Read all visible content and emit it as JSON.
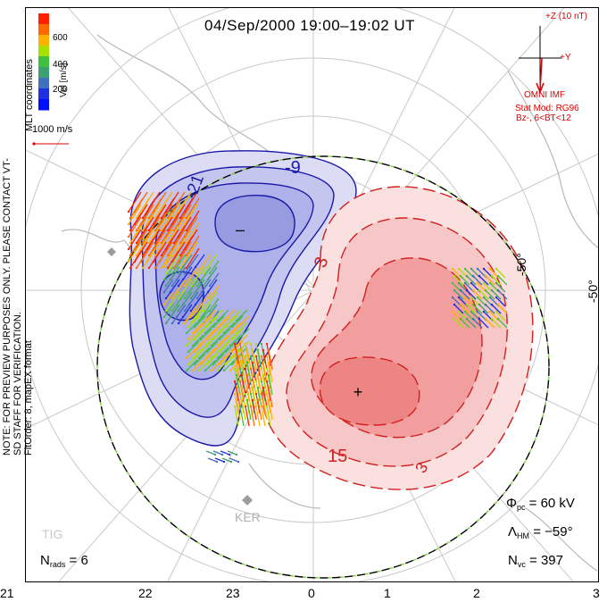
{
  "title": "04/Sep/2000 19:00–19:02 UT",
  "side_note_1": "NOTE: FOR PREVIEW PURPOSES ONLY. PLEASE CONTACT VT-SD STAFF FOR VERIFICATION.",
  "side_note_2": "FitOrder: 8, mapEX format",
  "coord_label": "MLT coordinates",
  "colorbar": {
    "label": "Vel [m/s]",
    "ticks": [
      "600",
      "400",
      "200"
    ],
    "colors": [
      "#ff2000",
      "#ff6a00",
      "#ffb000",
      "#a8e000",
      "#40c040",
      "#3ca070",
      "#4070c0",
      "#2030e0",
      "#0010ff"
    ]
  },
  "reference_vector": "1000 m/s",
  "imf": {
    "z_label": "+Z (10 nT)",
    "y_label": "+Y",
    "source": "OMNI IMF",
    "model_1": "Stat Mod: RG96",
    "model_2": "Bz-, 6<BT<12"
  },
  "contour_labels": {
    "neg_outer": "-9",
    "neg_inner": "-21",
    "pos_outer": "3",
    "pos_mid": "15",
    "pos_edge": "3"
  },
  "pole_marks": {
    "min": "–",
    "max": "+"
  },
  "lat_label": "-50°",
  "stations": [
    "KER",
    "TIG"
  ],
  "stats": {
    "phi_pc_symbol": "Φ",
    "phi_pc_sub": "pc",
    "phi_pc_value": "= 60 kV",
    "lambda_symbol": "Λ",
    "lambda_sub": "HM",
    "lambda_value": "= −59°",
    "nvc_symbol": "N",
    "nvc_sub": "vc",
    "nvc_value": "= 397",
    "nrads_symbol": "N",
    "nrads_sub": "rads",
    "nrads_value": "= 6"
  },
  "mlt_ticks": [
    "21",
    "22",
    "23",
    "0",
    "1",
    "2",
    "3"
  ],
  "colors": {
    "negative_fill": "#a8acea",
    "negative_line": "#1a1aa8",
    "positive_fill": "#f3a8a8",
    "positive_line": "#d21f1f",
    "boundary_green": "#7ed03c"
  }
}
